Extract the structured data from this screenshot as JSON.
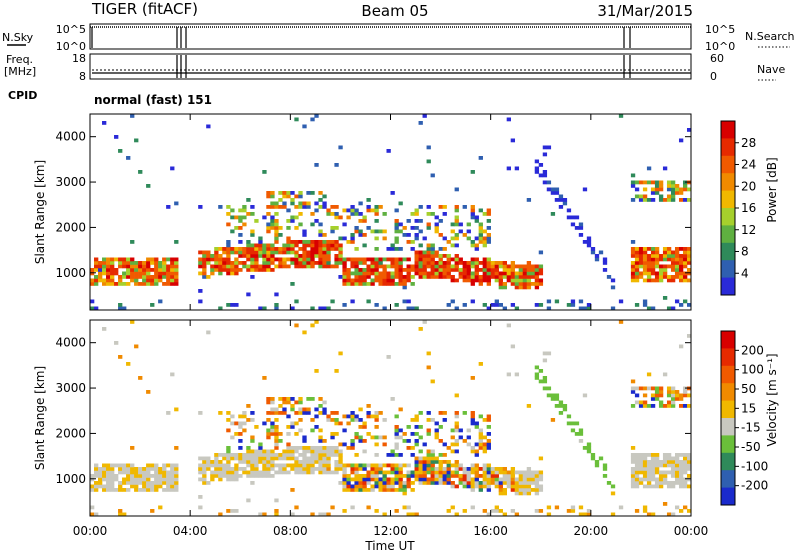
{
  "header": {
    "left": "TIGER (fitACF)",
    "center": "Beam 05",
    "right": "31/Mar/2015"
  },
  "panels": {
    "nsky_label": "N.Sky",
    "nsearch_label": "N.Search",
    "freq_label_1": "Freq.",
    "freq_label_2": "[MHz]",
    "nave_label": "Nave",
    "cpid_label": "CPID",
    "cpid_text": "normal (fast) 151",
    "nsky_ticks": [
      "10^5",
      "10^0"
    ],
    "nsearch_ticks": [
      "10^5",
      "10^0"
    ],
    "freq_ticks": [
      "18",
      "8"
    ],
    "nave_ticks": [
      "60",
      "0"
    ]
  },
  "chart_data": [
    {
      "type": "heatmap",
      "ylabel": "Slant Range [km]",
      "xlabel": "Time UT",
      "y_ticks": [
        "4000",
        "3000",
        "2000",
        "1000"
      ],
      "x_ticks": [
        "00:00",
        "04:00",
        "08:00",
        "12:00",
        "16:00",
        "20:00",
        "00:00"
      ],
      "ylim": [
        180,
        4500
      ],
      "xlim_hours": [
        0,
        24
      ],
      "colorbar": {
        "label": "Power [dB]",
        "ticks": [
          "28",
          "24",
          "20",
          "16",
          "12",
          "8",
          "4"
        ],
        "colors": [
          "#2a2ad8",
          "#2f5fb0",
          "#2f8a5a",
          "#5fb040",
          "#a6d02c",
          "#f0b800",
          "#f08a00",
          "#f05a00",
          "#e62a00",
          "#d80000"
        ]
      }
    },
    {
      "type": "heatmap",
      "ylabel": "Slant Range [km]",
      "xlabel": "Time UT",
      "y_ticks": [
        "4000",
        "3000",
        "2000",
        "1000"
      ],
      "x_ticks": [
        "00:00",
        "04:00",
        "08:00",
        "12:00",
        "16:00",
        "20:00",
        "00:00"
      ],
      "ylim": [
        180,
        4500
      ],
      "xlim_hours": [
        0,
        24
      ],
      "colorbar": {
        "label": "Velocity [m s⁻¹]",
        "ticks": [
          "200",
          "100",
          "50",
          "15",
          "-15",
          "-50",
          "-100",
          "-200"
        ],
        "colors": [
          "#1a2acc",
          "#2f5fb0",
          "#2f8a5a",
          "#6abf3a",
          "#c8c8c0",
          "#f0b800",
          "#f08a00",
          "#f05a00",
          "#e62a00",
          "#d80000"
        ]
      }
    }
  ],
  "x_axis_label": "Time UT"
}
